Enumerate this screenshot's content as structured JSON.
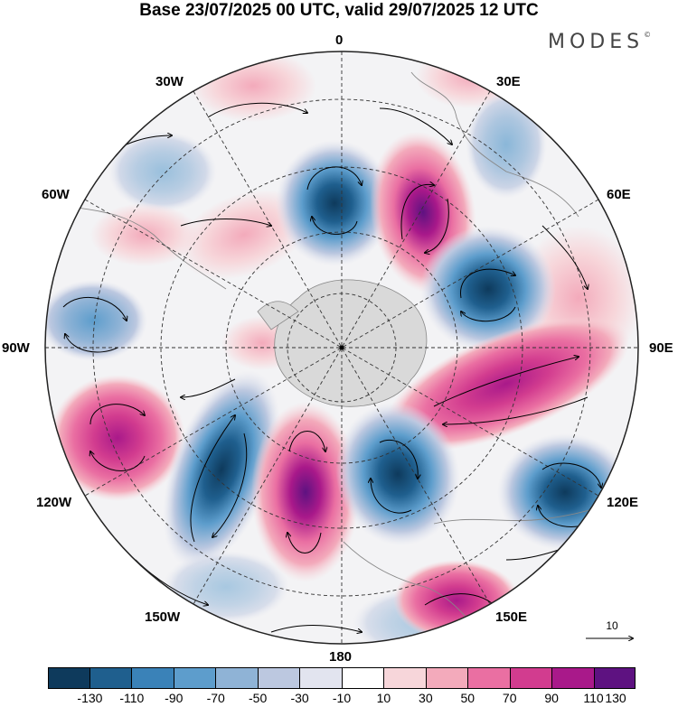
{
  "title": "Base 23/07/2025 00 UTC, valid 29/07/2025 12 UTC",
  "brand": {
    "name": "MODES",
    "mark": "©"
  },
  "map": {
    "projection": "south-polar-stereographic",
    "longitude_labels": {
      "top": "0",
      "top_right": "30E",
      "right_upper": "60E",
      "right": "90E",
      "right_lower": "120E",
      "bottom_right": "150E",
      "bottom": "180",
      "bottom_left": "150W",
      "left_lower": "120W",
      "left": "90W",
      "left_upper": "60W",
      "top_left": "30W"
    }
  },
  "reference_vector": {
    "label": "10"
  },
  "colorbar": {
    "colors": [
      "#0e3a5c",
      "#1f5f8e",
      "#3a82b8",
      "#5d9dcc",
      "#8fb3d6",
      "#bcc8e0",
      "#e2e4ef",
      "#ffffff",
      "#f7d6da",
      "#f3aabb",
      "#ea6fa2",
      "#d23c8f",
      "#a9198a",
      "#5e1281"
    ],
    "tick_labels": [
      "-130",
      "-110",
      "-90",
      "-70",
      "-50",
      "-30",
      "-10",
      "10",
      "30",
      "50",
      "70",
      "90",
      "110",
      "130"
    ]
  },
  "colors": {
    "land": "#d9d9d9",
    "grid": "#333333",
    "coast": "#888888"
  }
}
